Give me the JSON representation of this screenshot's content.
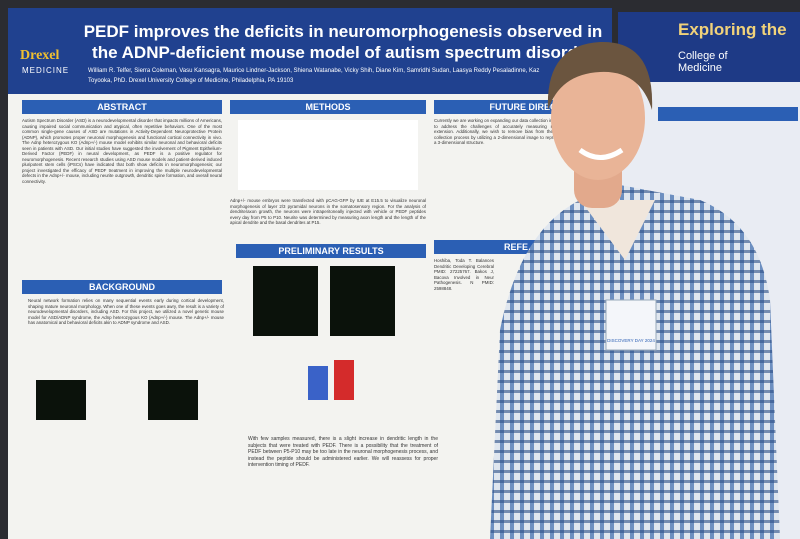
{
  "poster": {
    "logo": {
      "name": "Drexel",
      "subtitle": "MEDICINE"
    },
    "title_line1": "PEDF improves the deficits in neuromorphogenesis observed in",
    "title_line2": "the ADNP-deficient mouse model of autism spectrum disorder",
    "authors": "William R. Telfer, Sierra Coleman, Vasu Kansagra, Maurice Lindner-Jackson, Shiena Watanabe, Vicky Shih, Diane Kim, Samridhi Sudan, Laasya Reddy Pesaladinne, Kaz",
    "affiliation": "Toyooka, PhD. Drexel University College of Medicine, Philadelphia, PA 19103",
    "sections": [
      {
        "heading": "ABSTRACT",
        "body": "Autism Spectrum Disorder (ASD) is a neurodevelopmental disorder that impacts millions of Americans, causing impaired social communication and atypical, often repetitive behaviors. One of the most common single-gene causes of ASD are mutations in Activity-Dependent Neuroprotective Protein (ADNP), which promotes proper neuronal morphogenesis and functional cortical connectivity in vivo. The Adnp heterozygous KO (Adnp+/-) mouse model exhibits similar neuronal and behavioral deficits seen in patients with ASD. Our initial studies have suggested the involvement of Pigment Epithelium-Derived Factor (PEDF) in neural development, as PEDF is a positive regulator for neuromorphogenesis. Recent research studies using ASD mouse models and patient-derived induced pluripotent stem cells (iPSCs) have indicated that both show deficits in neuromorphogenesis; our project investigated the efficacy of PEDF treatment in improving the multiple neurodevelopmental defects in the Adnp+/- mouse, including neurite outgrowth, dendritic spine formation, and overall neural connectivity."
      },
      {
        "heading": "METHODS",
        "body": "Adnp+/- mouse embryos were transfected with pCAG-GFP by IUE at E15.5 to visualize neuronal morphogenesis of layer 2/3 pyramidal neurons in the somatosensory region. For the analysis of dendrite/axon growth, the neurons were intraperitoneally injected with vehicle or PEDF peptides every day from P5 to P10. Neurite was determined by measuring axon length and the length of the apical dendrite and the basal dendrites at P15."
      },
      {
        "heading": "FUTURE DIREC",
        "body": "Currently we are working on expanding our data collection in order to address the challenges of accurately measuring neurite extension. Additionally, we wish to remove bias from the data collection process by utilizing a 2-dimensional image to represent a 3-dimensional structure."
      },
      {
        "heading": "PRELIMINARY RESULTS",
        "body": "With few samples measured, there is a slight increase in dendritic length in the subjects that were treated with PEDF. There is a possibility that the treatment of PEDF between P5-P10 may be too late in the neuronal morphogenesis process, and instead the peptide should be administered earlier. We will reassess for proper intervention timing of PEDF."
      },
      {
        "heading": "BACKGROUND",
        "body": "Neural network formation relies on many sequential events early during cortical development, shaping mature neuronal morphology. When one of these events goes awry, the result is a variety of neurodevelopmental disorders, including ASD. For this project, we utilized a novel genetic mouse model for ASD/ADNP syndrome, the Adnp heterozygous KO (Adnp+/-) mouse. The Adnp+/- mouse has anatomical and behavioral deficits akin to ADNP syndrome and ASD."
      },
      {
        "heading": "REFE",
        "body": "Hoshiba, Toda T. Balances Dendritic Developing Cerebral PMID: 27225767. Bakos J, Bacova Involved in Neur Pathogenesis. N PMID: 2598848."
      }
    ]
  },
  "background_poster": {
    "title": "Exploring the",
    "logo": "College of Medicine"
  },
  "badge": {
    "event": "DISCOVERY DAY 2024"
  }
}
